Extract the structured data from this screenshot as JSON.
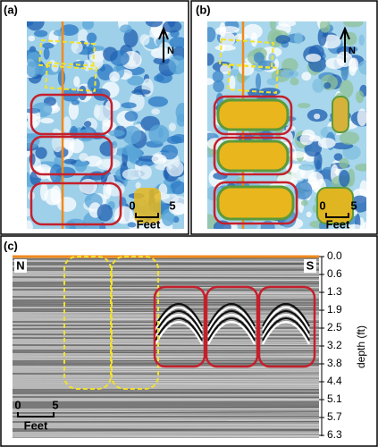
{
  "panels": [
    {
      "label": "(a)",
      "north": "N",
      "scale": {
        "start": "0",
        "end": "5",
        "unit": "Feet"
      }
    },
    {
      "label": "(b)",
      "north": "N",
      "scale": {
        "start": "0",
        "end": "5",
        "unit": "Feet"
      }
    },
    {
      "label": "(c)",
      "left_end": "N",
      "right_end": "S",
      "scale": {
        "start": "0",
        "end": "5",
        "unit": "Feet"
      },
      "depth_axis": {
        "label": "depth (ft)",
        "ticks": [
          "0.0",
          "0.6",
          "1.3",
          "1.9",
          "2.5",
          "3.2",
          "3.8",
          "4.4",
          "5.1",
          "5.7",
          "6.3"
        ]
      }
    }
  ]
}
